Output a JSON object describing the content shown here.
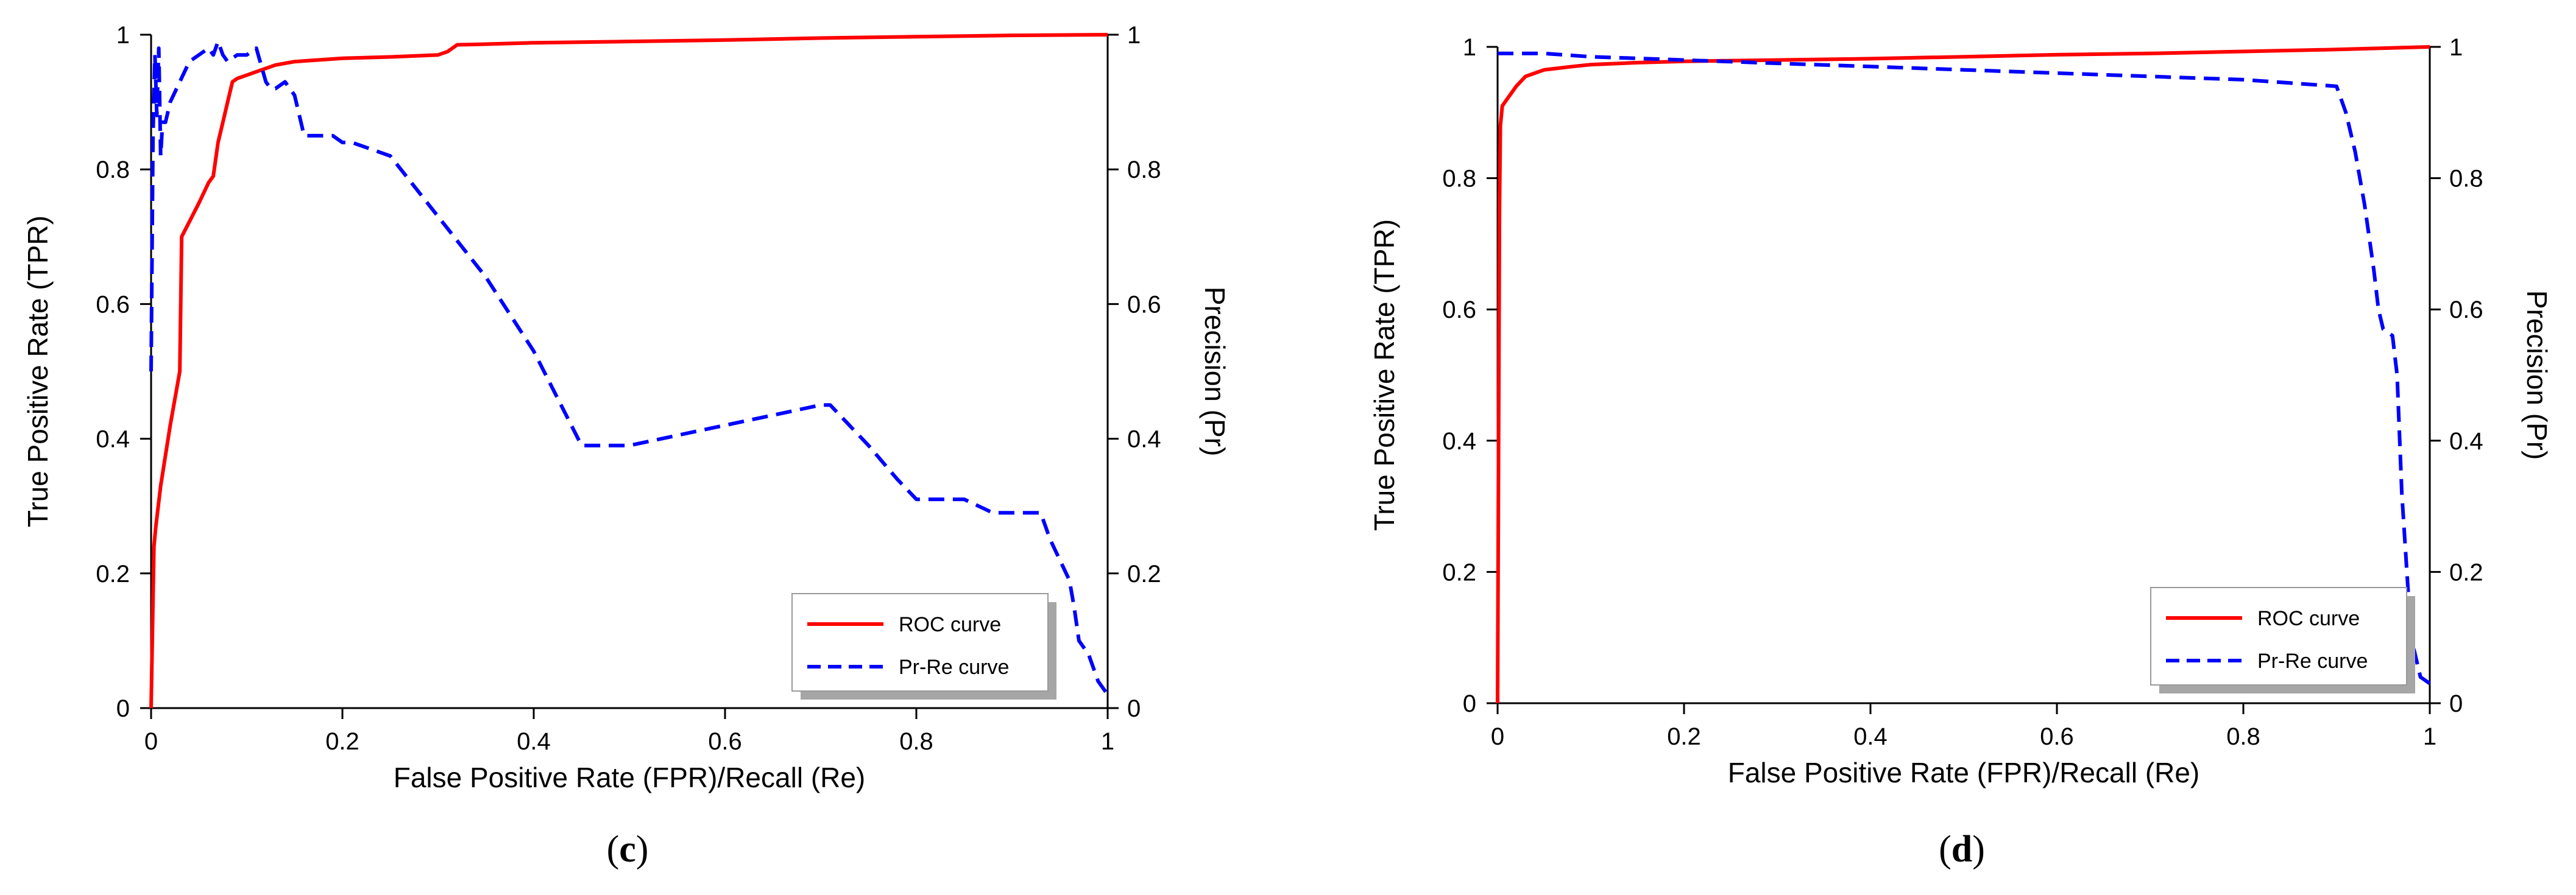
{
  "colors": {
    "roc": "#ff0000",
    "prre": "#0000ff",
    "axis": "#000000",
    "legend_shadow": "#a6a6a6"
  },
  "chart_data": [
    {
      "type": "line",
      "panel_label": "c",
      "xlabel": "False Positive Rate (FPR)/Recall (Re)",
      "ylabel": "True Positive Rate (TPR)",
      "y2label": "Precision (Pr)",
      "xlim": [
        0,
        1
      ],
      "ylim": [
        0,
        1
      ],
      "y2lim": [
        0,
        1
      ],
      "xticks": [
        "0",
        "0.2",
        "0.4",
        "0.6",
        "0.8",
        "1"
      ],
      "yticks": [
        "0",
        "0.2",
        "0.4",
        "0.6",
        "0.8",
        "1"
      ],
      "y2ticks": [
        "0",
        "0.2",
        "0.4",
        "0.6",
        "0.8",
        "1"
      ],
      "grid": false,
      "legend_position": "bottom-right",
      "series": [
        {
          "name": "ROC curve",
          "axis": "left",
          "style": "solid",
          "x": [
            0,
            0.003,
            0.005,
            0.01,
            0.02,
            0.03,
            0.032,
            0.05,
            0.06,
            0.065,
            0.07,
            0.075,
            0.08,
            0.085,
            0.09,
            0.1,
            0.11,
            0.12,
            0.13,
            0.15,
            0.2,
            0.25,
            0.3,
            0.31,
            0.32,
            0.35,
            0.4,
            0.5,
            0.6,
            0.7,
            0.8,
            0.9,
            1.0
          ],
          "y": [
            0,
            0.24,
            0.27,
            0.33,
            0.42,
            0.5,
            0.7,
            0.75,
            0.78,
            0.79,
            0.84,
            0.87,
            0.9,
            0.93,
            0.935,
            0.94,
            0.945,
            0.95,
            0.955,
            0.96,
            0.965,
            0.967,
            0.97,
            0.975,
            0.985,
            0.986,
            0.988,
            0.99,
            0.992,
            0.995,
            0.997,
            0.999,
            1.0
          ]
        },
        {
          "name": "Pr-Re curve",
          "axis": "right",
          "style": "dashed",
          "x": [
            0,
            0.002,
            0.004,
            0.006,
            0.008,
            0.01,
            0.012,
            0.015,
            0.02,
            0.03,
            0.04,
            0.05,
            0.06,
            0.065,
            0.07,
            0.075,
            0.08,
            0.09,
            0.1,
            0.11,
            0.12,
            0.125,
            0.13,
            0.14,
            0.15,
            0.16,
            0.17,
            0.19,
            0.2,
            0.21,
            0.23,
            0.25,
            0.3,
            0.35,
            0.4,
            0.45,
            0.47,
            0.5,
            0.6,
            0.7,
            0.71,
            0.75,
            0.78,
            0.8,
            0.85,
            0.88,
            0.9,
            0.93,
            0.94,
            0.95,
            0.96,
            0.965,
            0.97,
            0.98,
            0.99,
            1.0
          ],
          "y": [
            0.5,
            0.85,
            0.97,
            0.88,
            0.98,
            0.82,
            0.87,
            0.87,
            0.9,
            0.93,
            0.96,
            0.97,
            0.98,
            0.97,
            0.99,
            0.97,
            0.96,
            0.97,
            0.97,
            0.98,
            0.93,
            0.92,
            0.92,
            0.93,
            0.91,
            0.85,
            0.85,
            0.85,
            0.84,
            0.84,
            0.83,
            0.82,
            0.73,
            0.64,
            0.53,
            0.39,
            0.39,
            0.39,
            0.42,
            0.45,
            0.45,
            0.39,
            0.34,
            0.31,
            0.31,
            0.29,
            0.29,
            0.29,
            0.25,
            0.22,
            0.19,
            0.15,
            0.1,
            0.08,
            0.04,
            0.02
          ]
        }
      ]
    },
    {
      "type": "line",
      "panel_label": "d",
      "xlabel": "False Positive Rate (FPR)/Recall (Re)",
      "ylabel": "True Positive Rate (TPR)",
      "y2label": "Precision (Pr)",
      "xlim": [
        0,
        1
      ],
      "ylim": [
        0,
        1
      ],
      "y2lim": [
        0,
        1
      ],
      "xticks": [
        "0",
        "0.2",
        "0.4",
        "0.6",
        "0.8",
        "1"
      ],
      "yticks": [
        "0",
        "0.2",
        "0.4",
        "0.6",
        "0.8",
        "1"
      ],
      "y2ticks": [
        "0",
        "0.2",
        "0.4",
        "0.6",
        "0.8",
        "1"
      ],
      "grid": false,
      "legend_position": "bottom-right",
      "series": [
        {
          "name": "ROC curve",
          "axis": "left",
          "style": "solid",
          "x": [
            0,
            0.002,
            0.003,
            0.005,
            0.01,
            0.015,
            0.02,
            0.03,
            0.05,
            0.08,
            0.1,
            0.15,
            0.2,
            0.3,
            0.4,
            0.5,
            0.6,
            0.7,
            0.8,
            0.9,
            1.0
          ],
          "y": [
            0,
            0.75,
            0.88,
            0.91,
            0.92,
            0.93,
            0.94,
            0.955,
            0.965,
            0.97,
            0.973,
            0.976,
            0.978,
            0.98,
            0.982,
            0.985,
            0.988,
            0.99,
            0.993,
            0.996,
            1.0
          ]
        },
        {
          "name": "Pr-Re curve",
          "axis": "right",
          "style": "dashed",
          "x": [
            0,
            0.05,
            0.1,
            0.2,
            0.3,
            0.4,
            0.5,
            0.6,
            0.7,
            0.8,
            0.85,
            0.9,
            0.91,
            0.92,
            0.93,
            0.94,
            0.945,
            0.95,
            0.96,
            0.965,
            0.97,
            0.98,
            0.99,
            1.0
          ],
          "y": [
            0.99,
            0.99,
            0.985,
            0.98,
            0.975,
            0.97,
            0.965,
            0.96,
            0.955,
            0.95,
            0.945,
            0.94,
            0.9,
            0.84,
            0.76,
            0.66,
            0.6,
            0.57,
            0.56,
            0.5,
            0.32,
            0.1,
            0.04,
            0.03
          ]
        }
      ]
    }
  ]
}
